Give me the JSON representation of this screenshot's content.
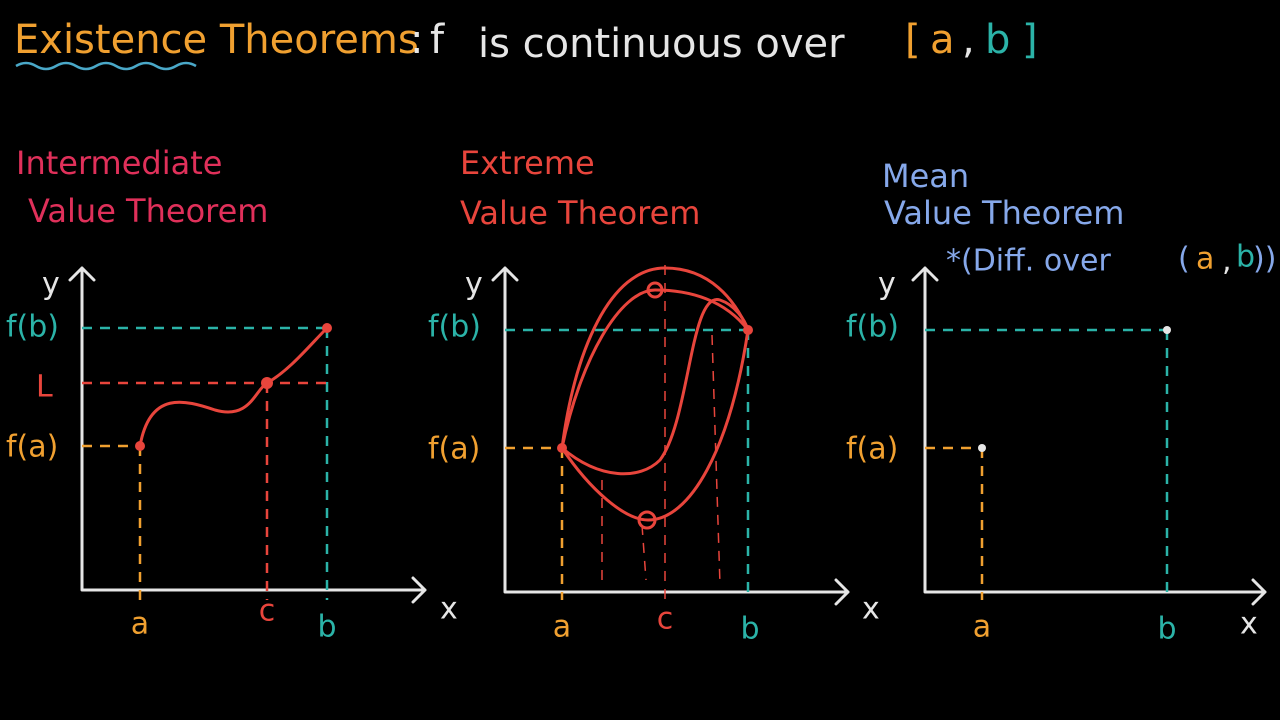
{
  "header": {
    "term": "Existence Theorems",
    "colon": ":",
    "f": "f",
    "condition": "is continuous over",
    "open": "[",
    "a": "a",
    "comma": ",",
    "b": "b",
    "close": "]"
  },
  "panels": [
    {
      "title_lines": [
        "Intermediate",
        "Value Theorem"
      ],
      "y_axis": "y",
      "x_axis": "x",
      "y_labels": [
        "f(b)",
        "L",
        "f(a)"
      ],
      "x_labels": [
        "a",
        "c",
        "b"
      ]
    },
    {
      "title_lines": [
        "Extreme",
        "Value Theorem"
      ],
      "y_axis": "y",
      "x_axis": "x",
      "y_labels": [
        "f(b)",
        "f(a)"
      ],
      "x_labels": [
        "a",
        "c",
        "b"
      ]
    },
    {
      "title_lines": [
        "Mean",
        "Value Theorem"
      ],
      "note": {
        "text": "*(Diff. over",
        "open": "(",
        "a": "a",
        "comma": ",",
        "b": "b",
        "close": "))"
      },
      "y_axis": "y",
      "x_axis": "x",
      "y_labels": [
        "f(b)",
        "f(a)"
      ],
      "x_labels": [
        "a",
        "b"
      ]
    }
  ]
}
